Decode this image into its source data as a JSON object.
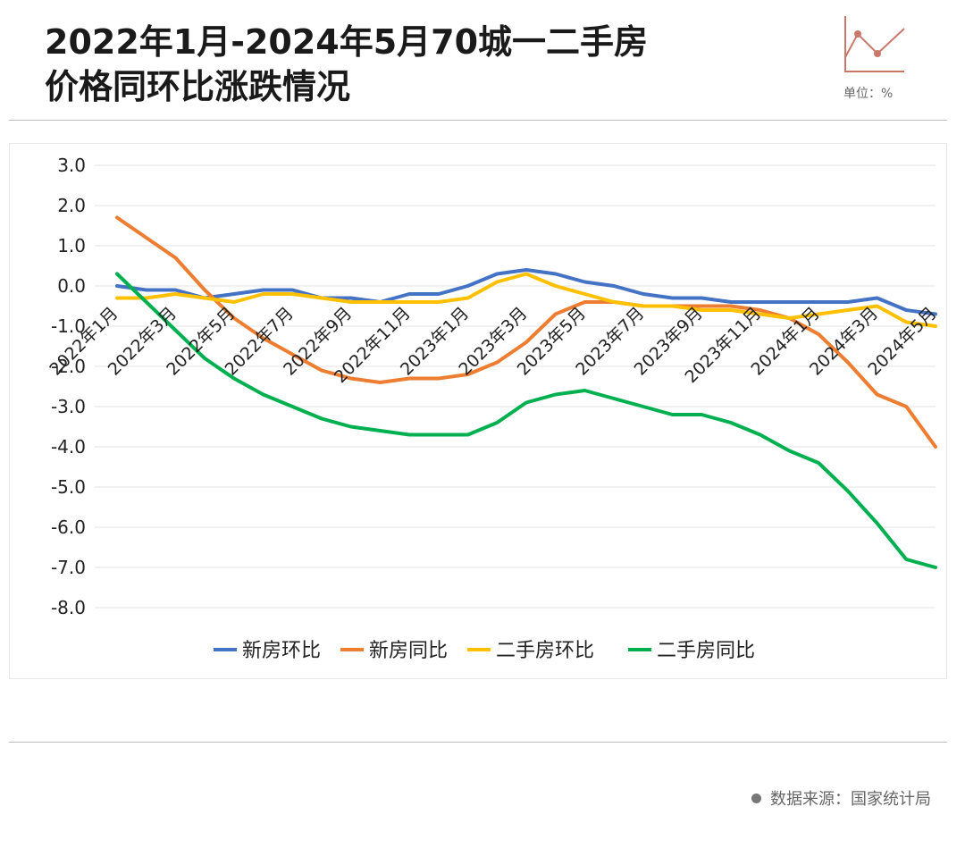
{
  "title": {
    "line1": "2022年1月-2024年5月70城一二手房",
    "line2": "价格同环比涨跌情况"
  },
  "unit_label": "单位：%",
  "source": "数据来源：国家统计局",
  "chart_data": {
    "type": "line",
    "x": [
      "2022年1月",
      "2022年2月",
      "2022年3月",
      "2022年4月",
      "2022年5月",
      "2022年6月",
      "2022年7月",
      "2022年8月",
      "2022年9月",
      "2022年10月",
      "2022年11月",
      "2022年12月",
      "2023年1月",
      "2023年2月",
      "2023年3月",
      "2023年4月",
      "2023年5月",
      "2023年6月",
      "2023年7月",
      "2023年8月",
      "2023年9月",
      "2023年10月",
      "2023年11月",
      "2023年12月",
      "2024年1月",
      "2024年2月",
      "2024年3月",
      "2024年4月",
      "2024年5月"
    ],
    "x_tick_labels": [
      "2022年1月",
      "2022年3月",
      "2022年5月",
      "2022年7月",
      "2022年9月",
      "2022年11月",
      "2023年1月",
      "2023年3月",
      "2023年5月",
      "2023年7月",
      "2023年9月",
      "2023年11月",
      "2024年1月",
      "2024年3月",
      "2024年5月"
    ],
    "y_tick_labels": [
      "3.0",
      "2.0",
      "1.0",
      "0.0",
      "-1.0",
      "-2.0",
      "-3.0",
      "-4.0",
      "-5.0",
      "-6.0",
      "-7.0",
      "-8.0"
    ],
    "ylim": [
      -8,
      3
    ],
    "grid": true,
    "legend_position": "bottom",
    "series": [
      {
        "name": "新房环比",
        "color": "#4472c4",
        "values": [
          0.0,
          -0.1,
          -0.1,
          -0.3,
          -0.2,
          -0.1,
          -0.1,
          -0.3,
          -0.3,
          -0.4,
          -0.2,
          -0.2,
          0.0,
          0.3,
          0.4,
          0.3,
          0.1,
          0.0,
          -0.2,
          -0.3,
          -0.3,
          -0.4,
          -0.4,
          -0.4,
          -0.4,
          -0.4,
          -0.3,
          -0.6,
          -0.7
        ]
      },
      {
        "name": "新房同比",
        "color": "#ed7d31",
        "values": [
          1.7,
          1.2,
          0.7,
          -0.1,
          -0.8,
          -1.3,
          -1.7,
          -2.1,
          -2.3,
          -2.4,
          -2.3,
          -2.3,
          -2.2,
          -1.9,
          -1.4,
          -0.7,
          -0.4,
          -0.4,
          -0.5,
          -0.5,
          -0.5,
          -0.5,
          -0.6,
          -0.8,
          -1.2,
          -1.9,
          -2.7,
          -3.0,
          -4.0
        ]
      },
      {
        "name": "二手房环比",
        "color": "#ffc000",
        "values": [
          -0.3,
          -0.3,
          -0.2,
          -0.3,
          -0.4,
          -0.2,
          -0.2,
          -0.3,
          -0.4,
          -0.4,
          -0.4,
          -0.4,
          -0.3,
          0.1,
          0.3,
          0.0,
          -0.2,
          -0.4,
          -0.5,
          -0.5,
          -0.6,
          -0.6,
          -0.7,
          -0.8,
          -0.7,
          -0.6,
          -0.5,
          -0.9,
          -1.0
        ]
      },
      {
        "name": "二手房同比",
        "color": "#00b050",
        "values": [
          0.3,
          -0.4,
          -1.1,
          -1.8,
          -2.3,
          -2.7,
          -3.0,
          -3.3,
          -3.5,
          -3.6,
          -3.7,
          -3.7,
          -3.7,
          -3.4,
          -2.9,
          -2.7,
          -2.6,
          -2.8,
          -3.0,
          -3.2,
          -3.2,
          -3.4,
          -3.7,
          -4.1,
          -4.4,
          -5.1,
          -5.9,
          -6.8,
          -7.0
        ]
      }
    ]
  }
}
